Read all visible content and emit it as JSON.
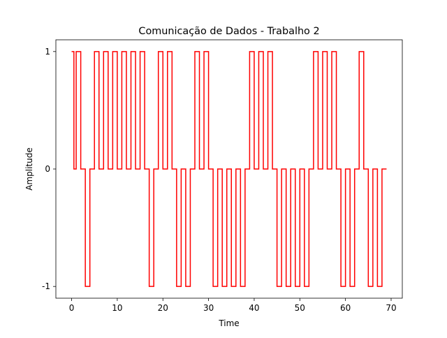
{
  "chart_data": {
    "type": "step",
    "title": "Comunicação de Dados - Trabalho 2",
    "x_label": "Time",
    "y_label": "Amplitude",
    "x": [
      0,
      0.5,
      1,
      2,
      3,
      4,
      5,
      6,
      7,
      8,
      9,
      10,
      11,
      12,
      13,
      14,
      15,
      16,
      17,
      18,
      19,
      20,
      21,
      22,
      23,
      24,
      25,
      26,
      27,
      28,
      29,
      30,
      31,
      32,
      33,
      34,
      35,
      36,
      37,
      38,
      39,
      40,
      41,
      42,
      43,
      44,
      45,
      46,
      47,
      48,
      49,
      50,
      51,
      52,
      53,
      54,
      55,
      56,
      57,
      58,
      59,
      60,
      61,
      62,
      63,
      64,
      65,
      66,
      67,
      68,
      69
    ],
    "values": [
      1,
      0,
      1,
      0,
      -1,
      0,
      1,
      0,
      1,
      0,
      1,
      0,
      1,
      0,
      1,
      0,
      1,
      0,
      -1,
      0,
      1,
      0,
      1,
      0,
      -1,
      0,
      -1,
      0,
      1,
      0,
      1,
      0,
      -1,
      0,
      -1,
      0,
      -1,
      0,
      -1,
      0,
      1,
      0,
      1,
      0,
      1,
      0,
      -1,
      0,
      -1,
      0,
      -1,
      0,
      -1,
      0,
      1,
      0,
      1,
      0,
      1,
      0,
      -1,
      0,
      -1,
      0,
      1,
      0,
      -1,
      0,
      -1,
      0,
      0
    ],
    "color": "#ff0000",
    "xlim": [
      -3.45,
      72.45
    ],
    "xticks": [
      0,
      10,
      20,
      30,
      40,
      50,
      60,
      70
    ],
    "ylim": [
      -1.1,
      1.1
    ],
    "yticks": [
      -1,
      0,
      1
    ],
    "grid": false
  }
}
